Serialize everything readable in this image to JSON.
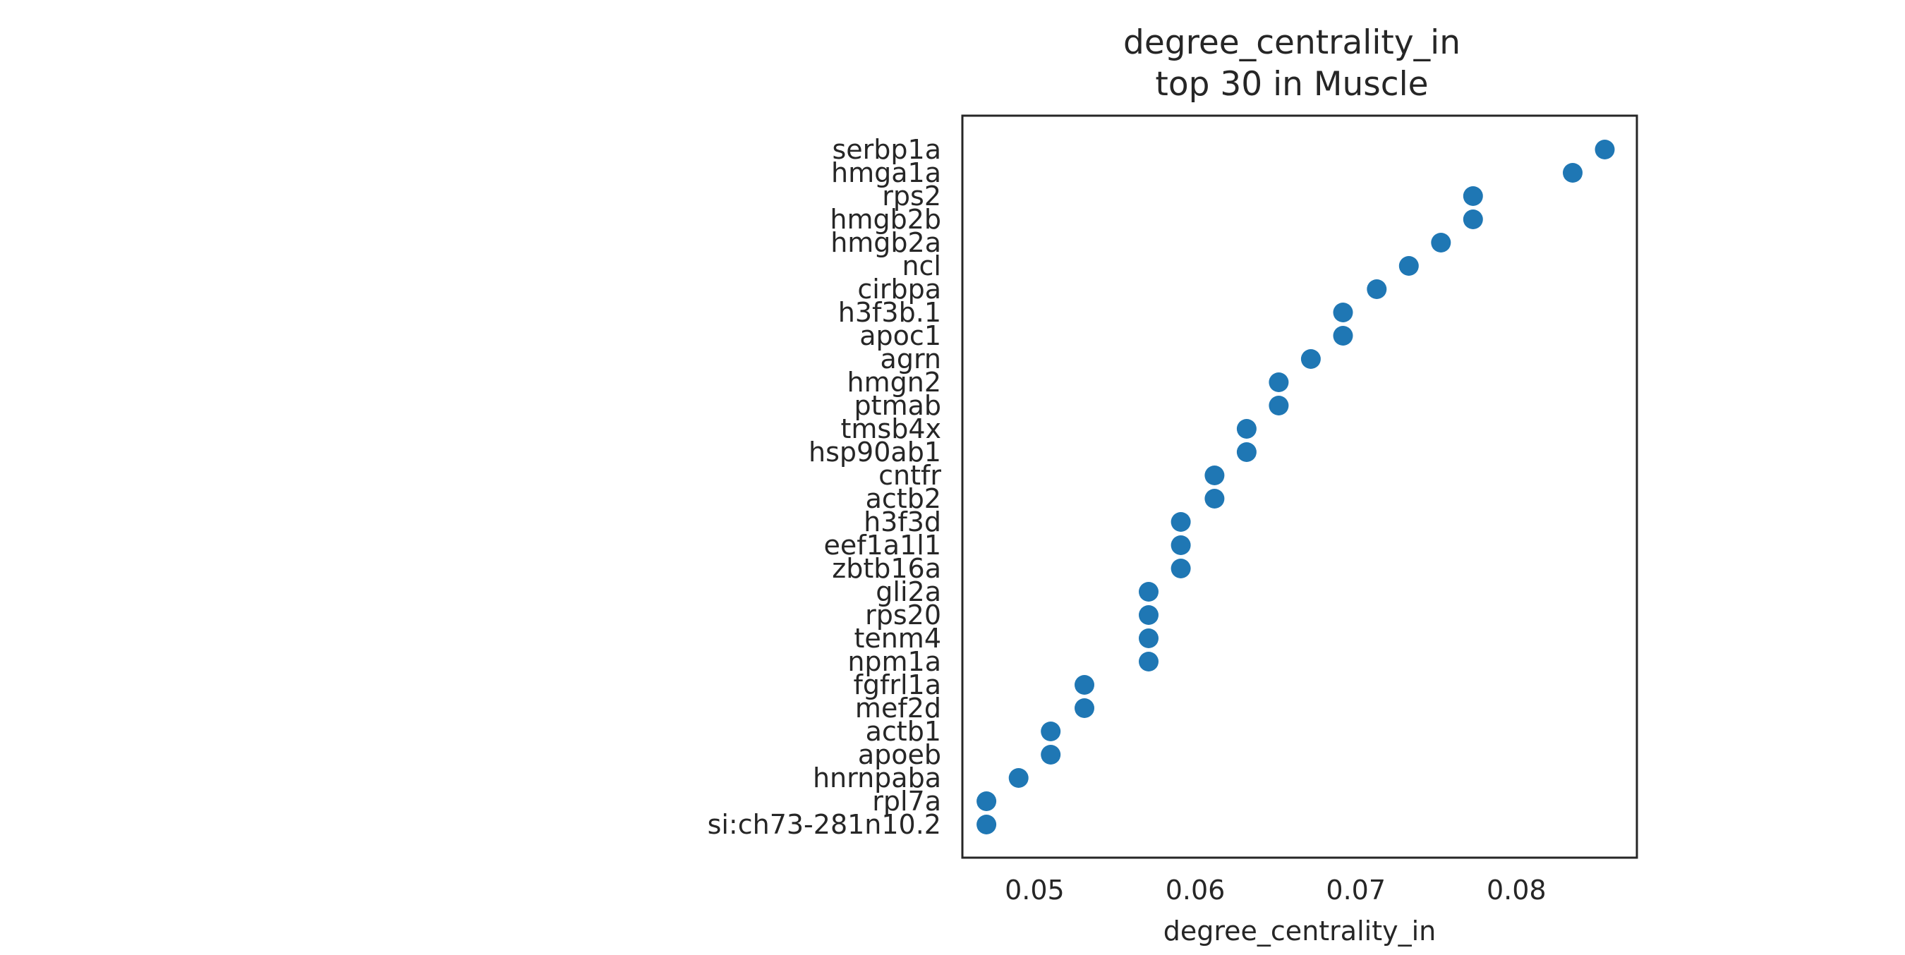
{
  "chart_data": {
    "type": "scatter",
    "title": "degree_centrality_in",
    "subtitle": "top 30 in Muscle",
    "xlabel": "degree_centrality_in",
    "ylabel": "",
    "xlim": [
      0.0455,
      0.0875
    ],
    "xticks": [
      0.05,
      0.06,
      0.07,
      0.08
    ],
    "xtick_labels": [
      "0.05",
      "0.06",
      "0.07",
      "0.08"
    ],
    "grid": false,
    "marker_color": "#1f77b4",
    "categories": [
      "serbp1a",
      "hmga1a",
      "rps2",
      "hmgb2b",
      "hmgb2a",
      "ncl",
      "cirbpa",
      "h3f3b.1",
      "apoc1",
      "agrn",
      "hmgn2",
      "ptmab",
      "tmsb4x",
      "hsp90ab1",
      "cntfr",
      "actb2",
      "h3f3d",
      "eef1a1l1",
      "zbtb16a",
      "gli2a",
      "rps20",
      "tenm4",
      "npm1a",
      "fgfrl1a",
      "mef2d",
      "actb1",
      "apoeb",
      "hnrnpaba",
      "rpl7a",
      "si:ch73-281n10.2"
    ],
    "values": [
      0.0855,
      0.0835,
      0.0773,
      0.0773,
      0.0753,
      0.0733,
      0.0713,
      0.0692,
      0.0692,
      0.0672,
      0.0652,
      0.0652,
      0.0632,
      0.0632,
      0.0612,
      0.0612,
      0.0591,
      0.0591,
      0.0591,
      0.0571,
      0.0571,
      0.0571,
      0.0571,
      0.0531,
      0.0531,
      0.051,
      0.051,
      0.049,
      0.047,
      0.047
    ]
  }
}
